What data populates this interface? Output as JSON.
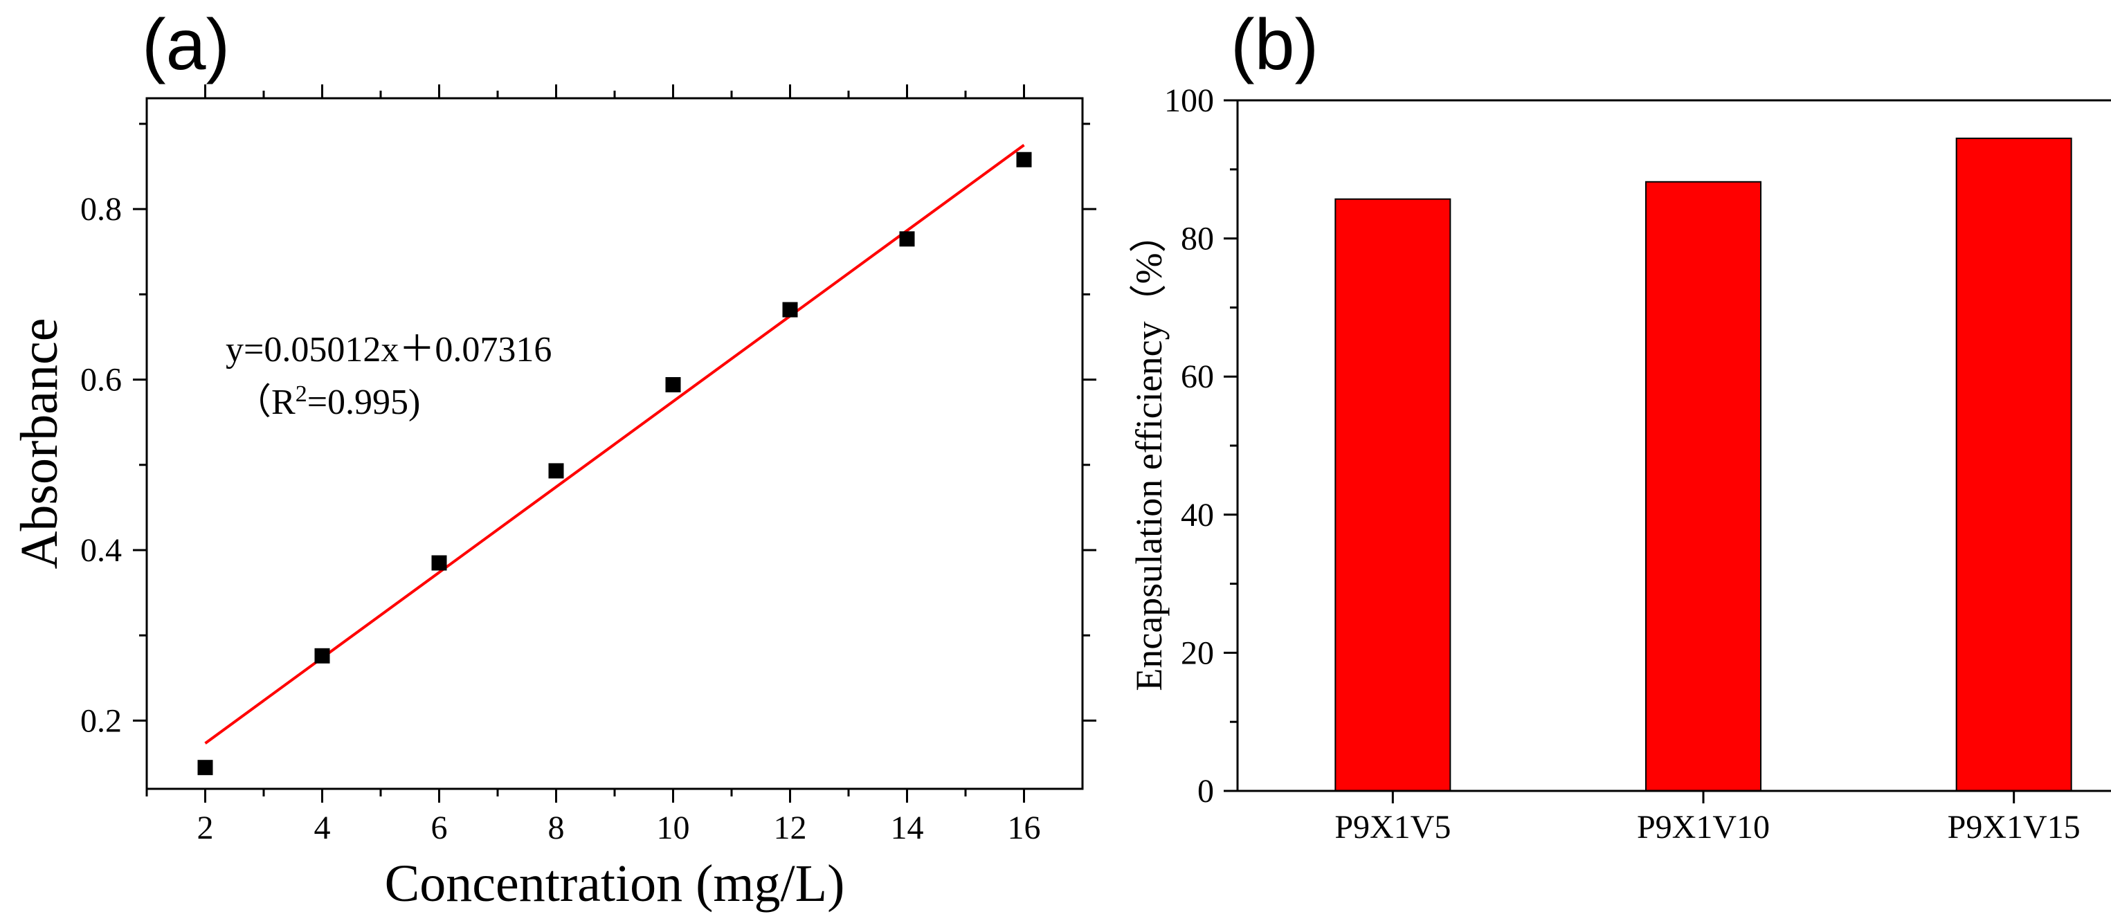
{
  "chart_data": [
    {
      "panel_label": "(a)",
      "type": "scatter",
      "xlabel": "Concentration (mg/L)",
      "ylabel": "Absorbance",
      "xlim": [
        1,
        17
      ],
      "ylim": [
        0.12,
        0.93
      ],
      "xticks": [
        2,
        4,
        6,
        8,
        10,
        12,
        14,
        16
      ],
      "yticks": [
        0.2,
        0.4,
        0.6,
        0.8
      ],
      "series": [
        {
          "name": "Absorbance",
          "marker": "square",
          "color": "#000000",
          "x": [
            2,
            4,
            6,
            8,
            10,
            12,
            14,
            16
          ],
          "y": [
            0.145,
            0.276,
            0.385,
            0.493,
            0.594,
            0.682,
            0.765,
            0.858
          ]
        }
      ],
      "fit": {
        "slope": 0.05012,
        "intercept": 0.07316,
        "x_range": [
          2,
          16
        ],
        "color": "#ff0000",
        "equation_label": "y=0.05012x＋0.07316",
        "r2_open": "（R",
        "r2_sup": "2",
        "r2_close": "=0.995)"
      }
    },
    {
      "panel_label": "(b)",
      "type": "bar",
      "categories": [
        "P9X1V5",
        "P9X1V10",
        "P9X1V15"
      ],
      "values": [
        85.7,
        88.2,
        94.5
      ],
      "ylabel": "Encapsulation efficiency（%）",
      "xlabel": "",
      "ylim": [
        0,
        100
      ],
      "yticks": [
        0,
        20,
        40,
        60,
        80,
        100
      ],
      "bar_color": "#ff0000"
    }
  ]
}
